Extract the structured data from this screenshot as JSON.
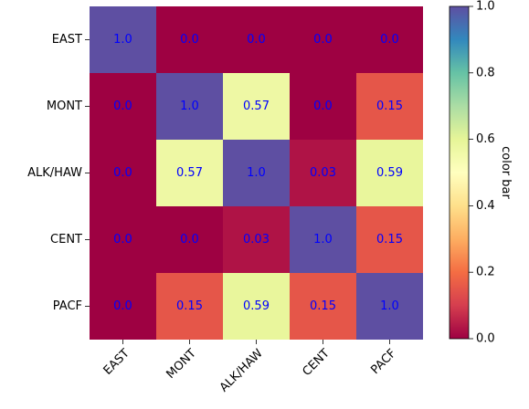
{
  "chart_data": {
    "type": "heatmap",
    "rows": [
      "EAST",
      "MONT",
      "ALK/HAW",
      "CENT",
      "PACF"
    ],
    "columns": [
      "EAST",
      "MONT",
      "ALK/HAW",
      "CENT",
      "PACF"
    ],
    "values": [
      [
        1.0,
        0.0,
        0.0,
        0.0,
        0.0
      ],
      [
        0.0,
        1.0,
        0.57,
        0.0,
        0.15
      ],
      [
        0.0,
        0.57,
        1.0,
        0.03,
        0.59
      ],
      [
        0.0,
        0.0,
        0.03,
        1.0,
        0.15
      ],
      [
        0.0,
        0.15,
        0.59,
        0.15,
        1.0
      ]
    ],
    "cell_labels": [
      [
        "1.0",
        "0.0",
        "0.0",
        "0.0",
        "0.0"
      ],
      [
        "0.0",
        "1.0",
        "0.57",
        "0.0",
        "0.15"
      ],
      [
        "0.0",
        "0.57",
        "1.0",
        "0.03",
        "0.59"
      ],
      [
        "0.0",
        "0.0",
        "0.03",
        "1.0",
        "0.15"
      ],
      [
        "0.0",
        "0.15",
        "0.59",
        "0.15",
        "1.0"
      ]
    ],
    "colorbar": {
      "label": "color bar",
      "range": [
        0.0,
        1.0
      ],
      "ticks": [
        "0.0",
        "0.2",
        "0.4",
        "0.6",
        "0.8",
        "1.0"
      ],
      "colormap": "Spectral"
    },
    "annotation_color": "#0000ff"
  }
}
